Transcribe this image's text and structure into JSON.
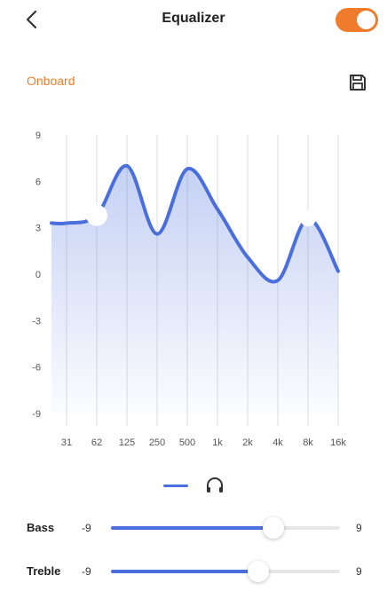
{
  "header": {
    "title": "Equalizer",
    "back_icon": "chevron-left-icon",
    "toggle_on": true
  },
  "preset": {
    "label": "Onboard"
  },
  "save_icon": "save-icon",
  "colors": {
    "accent_orange": "#f07c2b",
    "curve_blue": "#4a6fdc",
    "grid": "#dddddd"
  },
  "chart_data": {
    "type": "area",
    "x": [
      "31",
      "62",
      "125",
      "250",
      "500",
      "1k",
      "2k",
      "4k",
      "8k",
      "16k"
    ],
    "values": [
      3.3,
      3.8,
      7.0,
      2.6,
      6.8,
      4.2,
      1.1,
      -0.4,
      3.6,
      0.2
    ],
    "yticks": [
      "9",
      "6",
      "3",
      "0",
      "-3",
      "-6",
      "-9"
    ],
    "ylim": [
      -9,
      9
    ],
    "grid": true
  },
  "legend": {
    "icon": "headphones-icon"
  },
  "sliders": [
    {
      "label": "Bass",
      "min_label": "-9",
      "max_label": "9",
      "min": -9,
      "max": 9,
      "value": 3.8
    },
    {
      "label": "Treble",
      "min_label": "-9",
      "max_label": "9",
      "min": -9,
      "max": 9,
      "value": 2.6
    }
  ]
}
